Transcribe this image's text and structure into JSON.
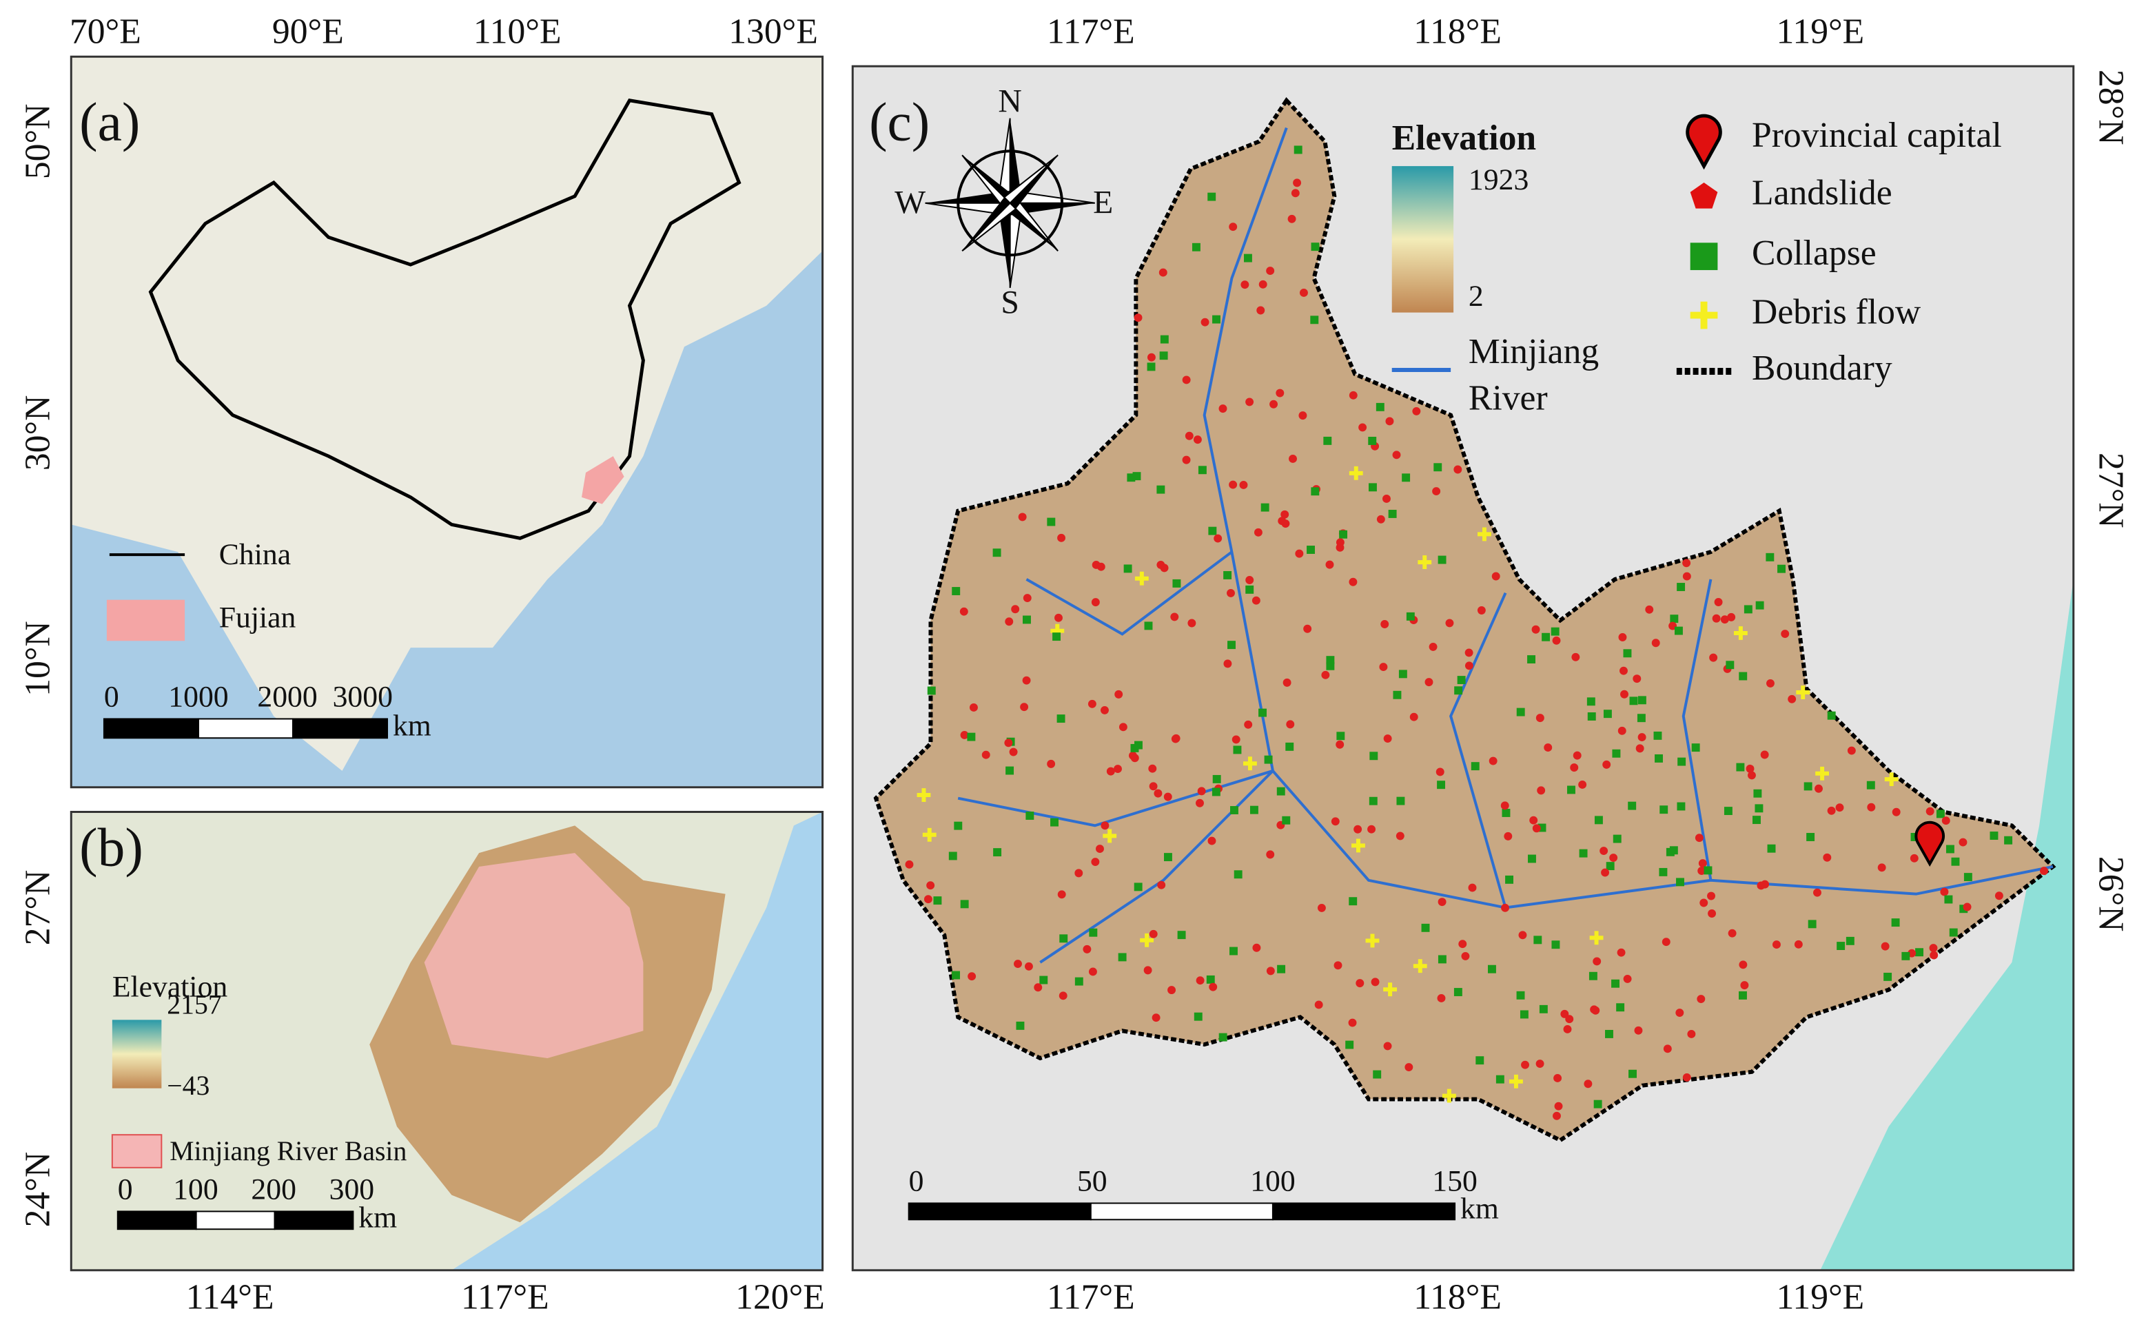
{
  "panels": [
    {
      "label": "(a)",
      "top_ticks": [
        "70°E",
        "90°E",
        "110°E",
        "130°E"
      ],
      "left_ticks": [
        "50°N",
        "30°N",
        "10°N"
      ],
      "legend": [
        "China",
        "Fujian"
      ],
      "scale_bar": [
        "0",
        "1000",
        "2000",
        "3000"
      ],
      "scale_unit": "km"
    },
    {
      "label": "(b)",
      "left_ticks": [
        "27°N",
        "24°N"
      ],
      "bottom_ticks": [
        "114°E",
        "117°E",
        "120°E"
      ],
      "legend_title": "Elevation",
      "elevation_max": "2157",
      "elevation_min": "−43",
      "legend": [
        "Minjiang River Basin"
      ],
      "scale_bar": [
        "0",
        "100",
        "200",
        "300"
      ],
      "scale_unit": "km"
    },
    {
      "label": "(c)",
      "top_ticks": [
        "117°E",
        "118°E",
        "119°E"
      ],
      "bottom_ticks": [
        "117°E",
        "118°E",
        "119°E"
      ],
      "right_ticks": [
        "28°N",
        "27°N",
        "26°N"
      ],
      "compass": {
        "north": "N",
        "south": "S",
        "west": "W",
        "east": "E"
      },
      "legend_title": "Elevation",
      "elevation_max": "1923",
      "elevation_min": "2",
      "river_label": [
        "Minjiang",
        "River"
      ],
      "legend": [
        "Provincial capital",
        "Landslide",
        "Collapse",
        "Debris flow",
        "Boundary"
      ],
      "scale_bar": [
        "0",
        "50",
        "100",
        "150"
      ],
      "scale_unit": "km"
    }
  ]
}
